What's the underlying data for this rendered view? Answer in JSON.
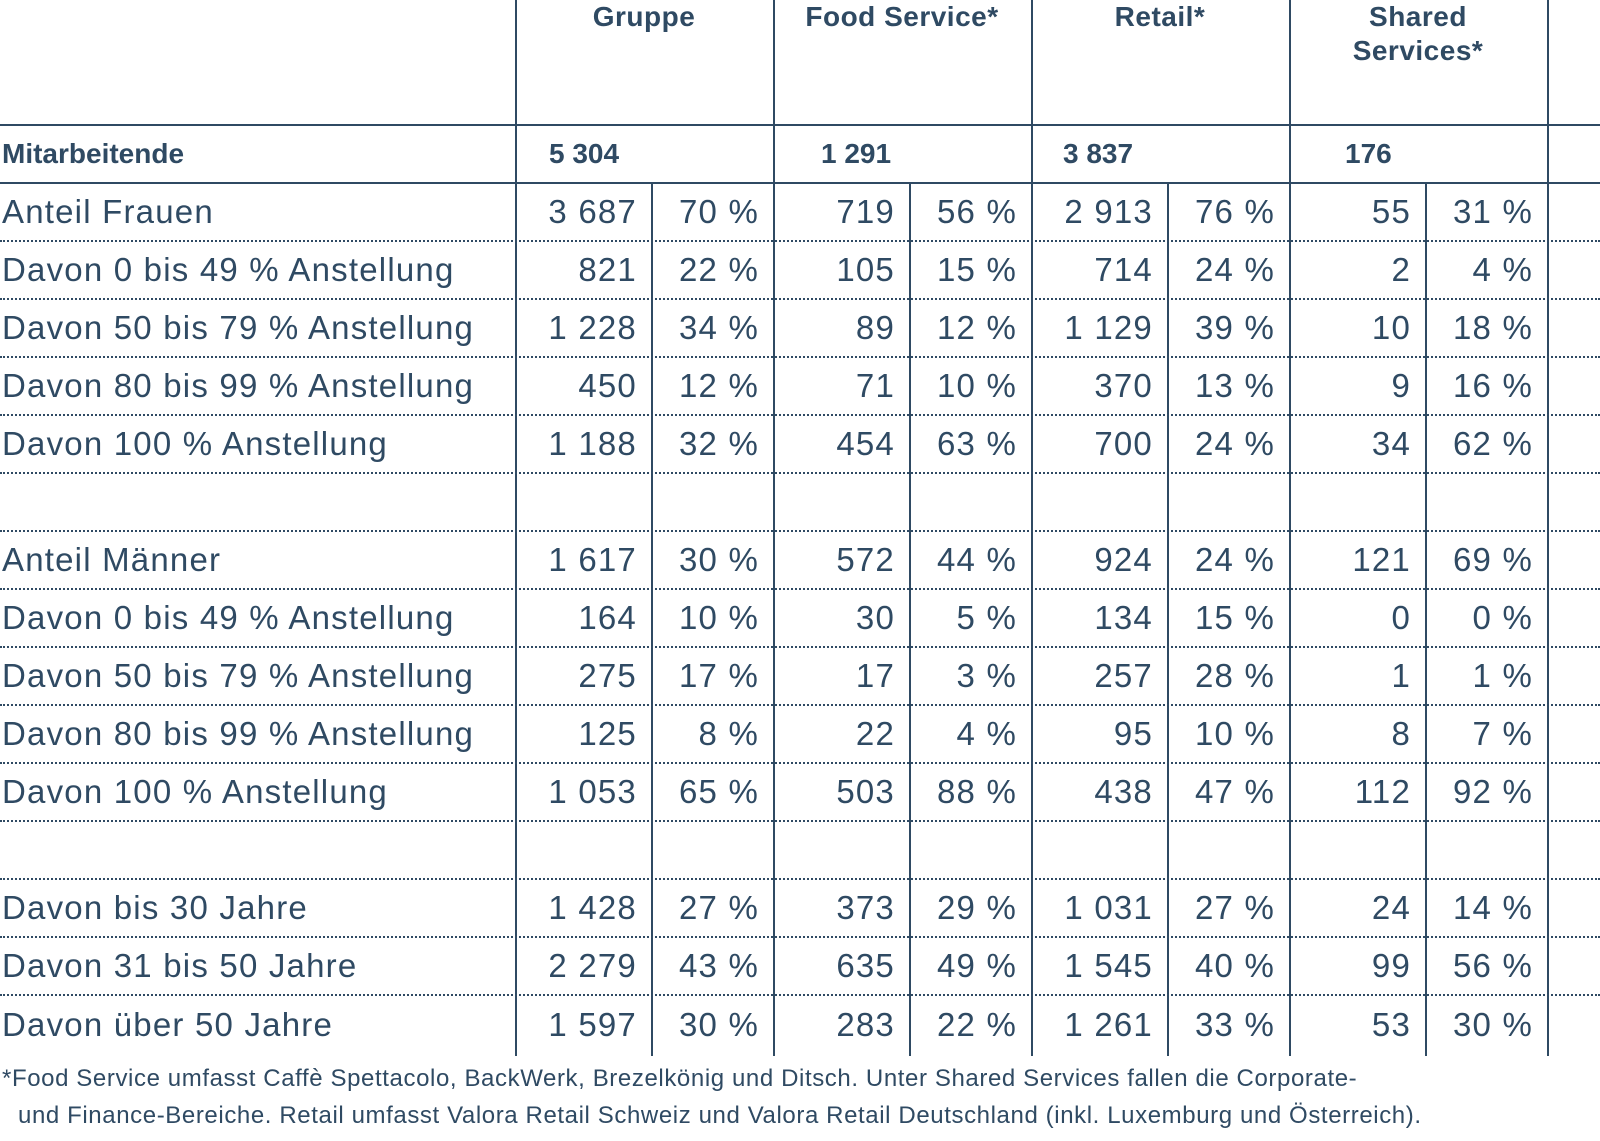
{
  "columns": [
    "Gruppe",
    "Food Service*",
    "Retail*",
    "Shared Services*"
  ],
  "shared_services_lines": [
    "Shared",
    "Services*"
  ],
  "total": {
    "label": "Mitarbeitende",
    "values": [
      "5 304",
      "1 291",
      "3 837",
      "176"
    ]
  },
  "rows": [
    {
      "label": "Anteil Frauen",
      "values": [
        "3 687",
        "70 %",
        "719",
        "56 %",
        "2 913",
        "76 %",
        "55",
        "31 %"
      ]
    },
    {
      "label": "Davon 0 bis 49 % Anstellung",
      "values": [
        "821",
        "22 %",
        "105",
        "15 %",
        "714",
        "24 %",
        "2",
        "4 %"
      ]
    },
    {
      "label": "Davon 50 bis 79 % Anstellung",
      "values": [
        "1 228",
        "34 %",
        "89",
        "12 %",
        "1 129",
        "39 %",
        "10",
        "18 %"
      ]
    },
    {
      "label": "Davon 80 bis 99 % Anstellung",
      "values": [
        "450",
        "12 %",
        "71",
        "10 %",
        "370",
        "13 %",
        "9",
        "16 %"
      ]
    },
    {
      "label": "Davon 100 % Anstellung",
      "values": [
        "1 188",
        "32 %",
        "454",
        "63 %",
        "700",
        "24 %",
        "34",
        "62 %"
      ]
    },
    {
      "label": "Anteil Männer",
      "values": [
        "1 617",
        "30 %",
        "572",
        "44 %",
        "924",
        "24 %",
        "121",
        "69 %"
      ]
    },
    {
      "label": "Davon 0 bis 49 % Anstellung",
      "values": [
        "164",
        "10 %",
        "30",
        "5 %",
        "134",
        "15 %",
        "0",
        "0 %"
      ]
    },
    {
      "label": "Davon 50 bis 79 % Anstellung",
      "values": [
        "275",
        "17 %",
        "17",
        "3 %",
        "257",
        "28 %",
        "1",
        "1 %"
      ]
    },
    {
      "label": "Davon 80 bis 99 % Anstellung",
      "values": [
        "125",
        "8 %",
        "22",
        "4 %",
        "95",
        "10 %",
        "8",
        "7 %"
      ]
    },
    {
      "label": "Davon 100 % Anstellung",
      "values": [
        "1 053",
        "65 %",
        "503",
        "88 %",
        "438",
        "47 %",
        "112",
        "92 %"
      ]
    },
    {
      "label": "Davon bis 30 Jahre",
      "values": [
        "1 428",
        "27 %",
        "373",
        "29 %",
        "1 031",
        "27 %",
        "24",
        "14 %"
      ]
    },
    {
      "label": "Davon 31 bis 50 Jahre",
      "values": [
        "2 279",
        "43 %",
        "635",
        "49 %",
        "1 545",
        "40 %",
        "99",
        "56 %"
      ]
    },
    {
      "label": "Davon über 50 Jahre",
      "values": [
        "1 597",
        "30 %",
        "283",
        "22 %",
        "1 261",
        "33 %",
        "53",
        "30 %"
      ]
    }
  ],
  "footnote": {
    "line1": "*Food Service umfasst Caffè Spettacolo, BackWerk, Brezelkönig und Ditsch. Unter Shared Services fallen die Corporate-",
    "line2": "und Finance-Bereiche. Retail umfasst Valora Retail Schweiz und Valora Retail Deutschland (inkl. Luxemburg und Österreich)."
  },
  "colors": {
    "text": "#2f4a63",
    "lines": "#2f4a63",
    "background": "#ffffff"
  }
}
